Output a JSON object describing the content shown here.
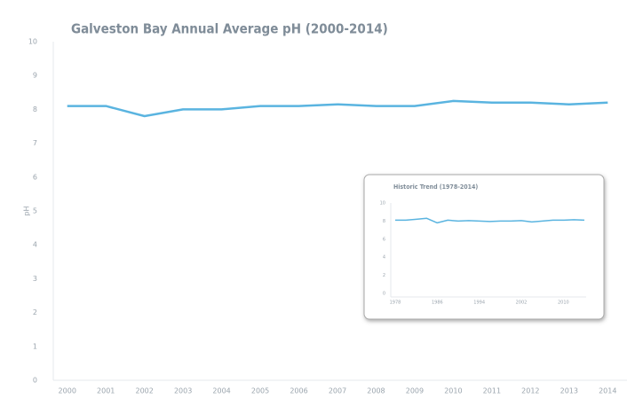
{
  "chart_data": [
    {
      "type": "line",
      "title": "Galveston Bay Annual Average pH (2000-2014)",
      "ylabel": "pH",
      "categories": [
        "2000",
        "2001",
        "2002",
        "2003",
        "2004",
        "2005",
        "2006",
        "2007",
        "2008",
        "2009",
        "2010",
        "2011",
        "2012",
        "2013",
        "2014"
      ],
      "series": [
        {
          "name": "pH",
          "color": "#5ab4e0",
          "values": [
            8.1,
            8.1,
            7.8,
            8.0,
            8.0,
            8.1,
            8.1,
            8.15,
            8.1,
            8.1,
            8.25,
            8.2,
            8.2,
            8.15,
            8.2
          ]
        }
      ],
      "ylim": [
        0,
        10
      ],
      "yticks": [
        0,
        1,
        2,
        3,
        4,
        5,
        6,
        7,
        8,
        9,
        10
      ]
    },
    {
      "type": "line",
      "title": "Historic Trend (1978-2014)",
      "x": [
        1978,
        1980,
        1982,
        1984,
        1986,
        1988,
        1990,
        1992,
        1994,
        1996,
        1998,
        2000,
        2002,
        2004,
        2006,
        2008,
        2010,
        2012,
        2014
      ],
      "series": [
        {
          "name": "pH",
          "color": "#5ab4e0",
          "values": [
            8.1,
            8.1,
            8.2,
            8.3,
            7.8,
            8.1,
            8.0,
            8.05,
            8.0,
            7.95,
            8.0,
            8.0,
            8.05,
            7.9,
            8.0,
            8.1,
            8.1,
            8.15,
            8.1
          ]
        }
      ],
      "xlim": [
        1978,
        2014
      ],
      "xticks": [
        1978,
        1986,
        1994,
        2002,
        2010
      ],
      "ylim": [
        0,
        10
      ],
      "yticks": [
        0,
        2,
        4,
        6,
        8,
        10
      ]
    }
  ]
}
